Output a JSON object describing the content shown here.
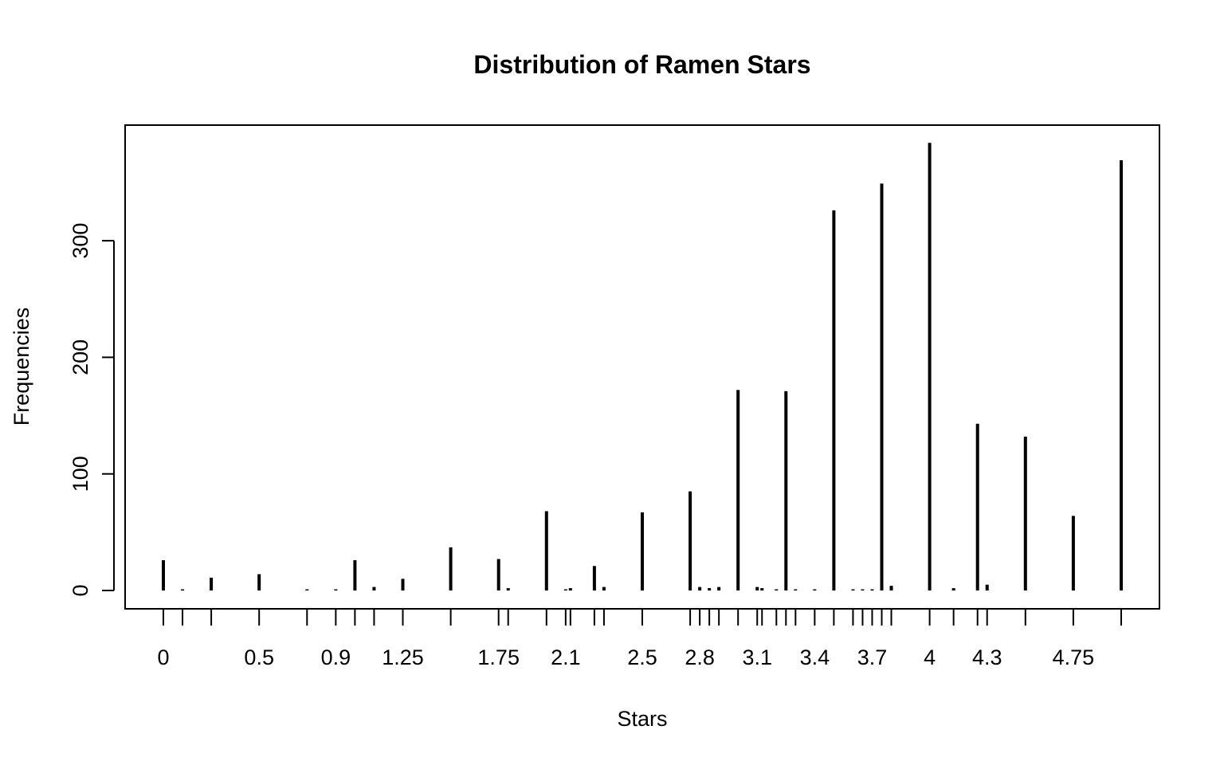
{
  "chart_data": {
    "type": "bar",
    "title": "Distribution of Ramen Stars",
    "xlabel": "Stars",
    "ylabel": "Frequencies",
    "ylim": [
      0,
      390
    ],
    "xlim": [
      -0.2,
      5.2
    ],
    "y_ticks": [
      0,
      100,
      200,
      300
    ],
    "x_tick_marks": [
      0,
      0.1,
      0.25,
      0.5,
      0.75,
      0.9,
      1,
      1.1,
      1.25,
      1.5,
      1.75,
      1.8,
      2,
      2.1,
      2.125,
      2.25,
      2.3,
      2.5,
      2.75,
      2.8,
      2.85,
      2.9,
      3,
      3.1,
      3.125,
      3.2,
      3.25,
      3.3,
      3.4,
      3.5,
      3.6,
      3.65,
      3.7,
      3.75,
      3.8,
      4,
      4.125,
      4.25,
      4.3,
      4.5,
      4.75,
      5
    ],
    "x_tick_labels": [
      {
        "value": 0,
        "label": "0"
      },
      {
        "value": 0.5,
        "label": "0.5"
      },
      {
        "value": 0.9,
        "label": "0.9"
      },
      {
        "value": 1.25,
        "label": "1.25"
      },
      {
        "value": 1.75,
        "label": "1.75"
      },
      {
        "value": 2.1,
        "label": "2.1"
      },
      {
        "value": 2.5,
        "label": "2.5"
      },
      {
        "value": 2.8,
        "label": "2.8"
      },
      {
        "value": 3.1,
        "label": "3.1"
      },
      {
        "value": 3.4,
        "label": "3.4"
      },
      {
        "value": 3.7,
        "label": "3.7"
      },
      {
        "value": 4,
        "label": "4"
      },
      {
        "value": 4.3,
        "label": "4.3"
      },
      {
        "value": 4.75,
        "label": "4.75"
      }
    ],
    "x": [
      0,
      0.1,
      0.25,
      0.5,
      0.75,
      0.9,
      1,
      1.1,
      1.25,
      1.5,
      1.75,
      1.8,
      2,
      2.1,
      2.125,
      2.25,
      2.3,
      2.5,
      2.75,
      2.8,
      2.85,
      2.9,
      3,
      3.1,
      3.125,
      3.2,
      3.25,
      3.3,
      3.4,
      3.5,
      3.6,
      3.65,
      3.7,
      3.75,
      3.8,
      4,
      4.125,
      4.25,
      4.3,
      4.5,
      4.75,
      5
    ],
    "values": [
      26,
      1,
      11,
      14,
      1,
      1,
      26,
      3,
      10,
      37,
      27,
      2,
      68,
      1,
      2,
      21,
      3,
      67,
      85,
      3,
      2,
      3,
      172,
      3,
      2,
      1,
      171,
      1,
      1,
      326,
      1,
      1,
      1,
      349,
      4,
      384,
      2,
      143,
      5,
      132,
      64,
      369
    ],
    "grid": false,
    "legend": "none"
  }
}
